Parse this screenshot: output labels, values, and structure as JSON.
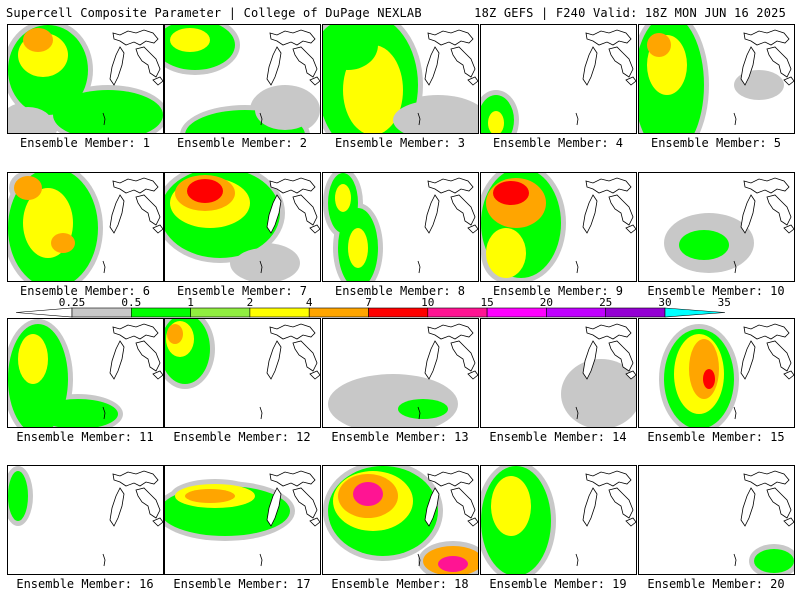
{
  "header": {
    "title": "Supercell Composite Parameter | College of DuPage NEXLAB",
    "run_info": "18Z GEFS | F240 Valid: 18Z MON JUN 16 2025"
  },
  "legend": {
    "ticks": [
      "0.25",
      "0.5",
      "1",
      "2",
      "4",
      "7",
      "10",
      "15",
      "20",
      "25",
      "30",
      "35"
    ],
    "colors": [
      "#c8c8c8",
      "#00ff00",
      "#90ee40",
      "#ffff00",
      "#ffa500",
      "#ff0000",
      "#ff1493",
      "#ff00ff",
      "#c000ff",
      "#9400d3",
      "#00ffff"
    ]
  },
  "members": [
    {
      "label": "Ensemble Member: 1",
      "blobs": [
        [
          40,
          45,
          40,
          45,
          "#00ff00"
        ],
        [
          35,
          30,
          25,
          22,
          "#ffff00"
        ],
        [
          30,
          15,
          15,
          12,
          "#ffa500"
        ],
        [
          100,
          90,
          55,
          25,
          "#00ff00"
        ],
        [
          20,
          100,
          25,
          18,
          "#c8c8c8"
        ]
      ]
    },
    {
      "label": "Ensemble Member: 2",
      "blobs": [
        [
          30,
          20,
          40,
          25,
          "#00ff00"
        ],
        [
          25,
          15,
          20,
          12,
          "#ffff00"
        ],
        [
          80,
          110,
          60,
          25,
          "#00ff00"
        ],
        [
          120,
          85,
          30,
          20,
          "#c8c8c8"
        ]
      ]
    },
    {
      "label": "Ensemble Member: 3",
      "blobs": [
        [
          45,
          60,
          50,
          70,
          "#00ff00"
        ],
        [
          50,
          65,
          30,
          45,
          "#ffff00"
        ],
        [
          25,
          20,
          30,
          25,
          "#00ff00"
        ],
        [
          115,
          95,
          45,
          20,
          "#c8c8c8"
        ]
      ]
    },
    {
      "label": "Ensemble Member: 4",
      "blobs": [
        [
          15,
          95,
          18,
          25,
          "#00ff00"
        ],
        [
          15,
          98,
          8,
          12,
          "#ffff00"
        ]
      ]
    },
    {
      "label": "Ensemble Member: 5",
      "blobs": [
        [
          30,
          60,
          35,
          70,
          "#00ff00"
        ],
        [
          28,
          40,
          20,
          30,
          "#ffff00"
        ],
        [
          20,
          20,
          12,
          12,
          "#ffa500"
        ],
        [
          120,
          60,
          20,
          10,
          "#c8c8c8"
        ]
      ]
    },
    {
      "label": "Ensemble Member: 6",
      "blobs": [
        [
          45,
          55,
          45,
          60,
          "#00ff00"
        ],
        [
          40,
          50,
          25,
          35,
          "#ffff00"
        ],
        [
          55,
          70,
          12,
          10,
          "#ffa500"
        ],
        [
          20,
          15,
          14,
          12,
          "#ffa500"
        ]
      ]
    },
    {
      "label": "Ensemble Member: 7",
      "blobs": [
        [
          55,
          40,
          60,
          45,
          "#00ff00"
        ],
        [
          45,
          30,
          40,
          25,
          "#ffff00"
        ],
        [
          40,
          20,
          30,
          18,
          "#ffa500"
        ],
        [
          40,
          18,
          18,
          12,
          "#ff0000"
        ],
        [
          100,
          90,
          30,
          15,
          "#c8c8c8"
        ]
      ]
    },
    {
      "label": "Ensemble Member: 8",
      "blobs": [
        [
          20,
          30,
          15,
          30,
          "#00ff00"
        ],
        [
          35,
          75,
          20,
          40,
          "#00ff00"
        ],
        [
          35,
          75,
          10,
          20,
          "#ffff00"
        ],
        [
          20,
          25,
          8,
          14,
          "#ffff00"
        ]
      ]
    },
    {
      "label": "Ensemble Member: 9",
      "blobs": [
        [
          40,
          50,
          40,
          55,
          "#00ff00"
        ],
        [
          35,
          30,
          30,
          25,
          "#ffa500"
        ],
        [
          30,
          20,
          18,
          12,
          "#ff0000"
        ],
        [
          25,
          80,
          20,
          25,
          "#ffff00"
        ]
      ]
    },
    {
      "label": "Ensemble Member: 10",
      "blobs": [
        [
          70,
          70,
          40,
          25,
          "#c8c8c8"
        ],
        [
          65,
          72,
          25,
          15,
          "#00ff00"
        ]
      ]
    },
    {
      "label": "Ensemble Member: 11",
      "blobs": [
        [
          30,
          60,
          30,
          55,
          "#00ff00"
        ],
        [
          25,
          40,
          15,
          25,
          "#ffff00"
        ],
        [
          70,
          95,
          40,
          15,
          "#00ff00"
        ]
      ]
    },
    {
      "label": "Ensemble Member: 12",
      "blobs": [
        [
          20,
          30,
          25,
          35,
          "#00ff00"
        ],
        [
          15,
          20,
          14,
          18,
          "#ffff00"
        ],
        [
          10,
          15,
          8,
          10,
          "#ffa500"
        ]
      ]
    },
    {
      "label": "Ensemble Member: 13",
      "blobs": [
        [
          70,
          85,
          60,
          25,
          "#c8c8c8"
        ],
        [
          100,
          90,
          25,
          10,
          "#00ff00"
        ]
      ]
    },
    {
      "label": "Ensemble Member: 14",
      "blobs": [
        [
          120,
          75,
          30,
          25,
          "#00ff00"
        ],
        [
          120,
          75,
          35,
          30,
          "#c8c8c8"
        ]
      ]
    },
    {
      "label": "Ensemble Member: 15",
      "blobs": [
        [
          60,
          60,
          35,
          50,
          "#00ff00"
        ],
        [
          60,
          55,
          25,
          40,
          "#ffff00"
        ],
        [
          65,
          50,
          15,
          30,
          "#ffa500"
        ],
        [
          70,
          60,
          6,
          10,
          "#ff0000"
        ]
      ]
    },
    {
      "label": "Ensemble Member: 16",
      "blobs": [
        [
          10,
          30,
          10,
          25,
          "#00ff00"
        ]
      ]
    },
    {
      "label": "Ensemble Member: 17",
      "blobs": [
        [
          60,
          45,
          65,
          25,
          "#00ff00"
        ],
        [
          50,
          30,
          40,
          12,
          "#ffff00"
        ],
        [
          45,
          30,
          25,
          7,
          "#ffa500"
        ]
      ]
    },
    {
      "label": "Ensemble Member: 18",
      "blobs": [
        [
          60,
          45,
          55,
          45,
          "#00ff00"
        ],
        [
          50,
          35,
          40,
          30,
          "#ffff00"
        ],
        [
          45,
          30,
          30,
          22,
          "#ffa500"
        ],
        [
          45,
          28,
          15,
          12,
          "#ff1493"
        ],
        [
          130,
          95,
          30,
          15,
          "#ffa500"
        ],
        [
          130,
          98,
          15,
          8,
          "#ff1493"
        ]
      ]
    },
    {
      "label": "Ensemble Member: 19",
      "blobs": [
        [
          35,
          55,
          35,
          55,
          "#00ff00"
        ],
        [
          30,
          40,
          20,
          30,
          "#ffff00"
        ]
      ]
    },
    {
      "label": "Ensemble Member: 20",
      "blobs": [
        [
          135,
          95,
          20,
          12,
          "#00ff00"
        ]
      ]
    }
  ]
}
